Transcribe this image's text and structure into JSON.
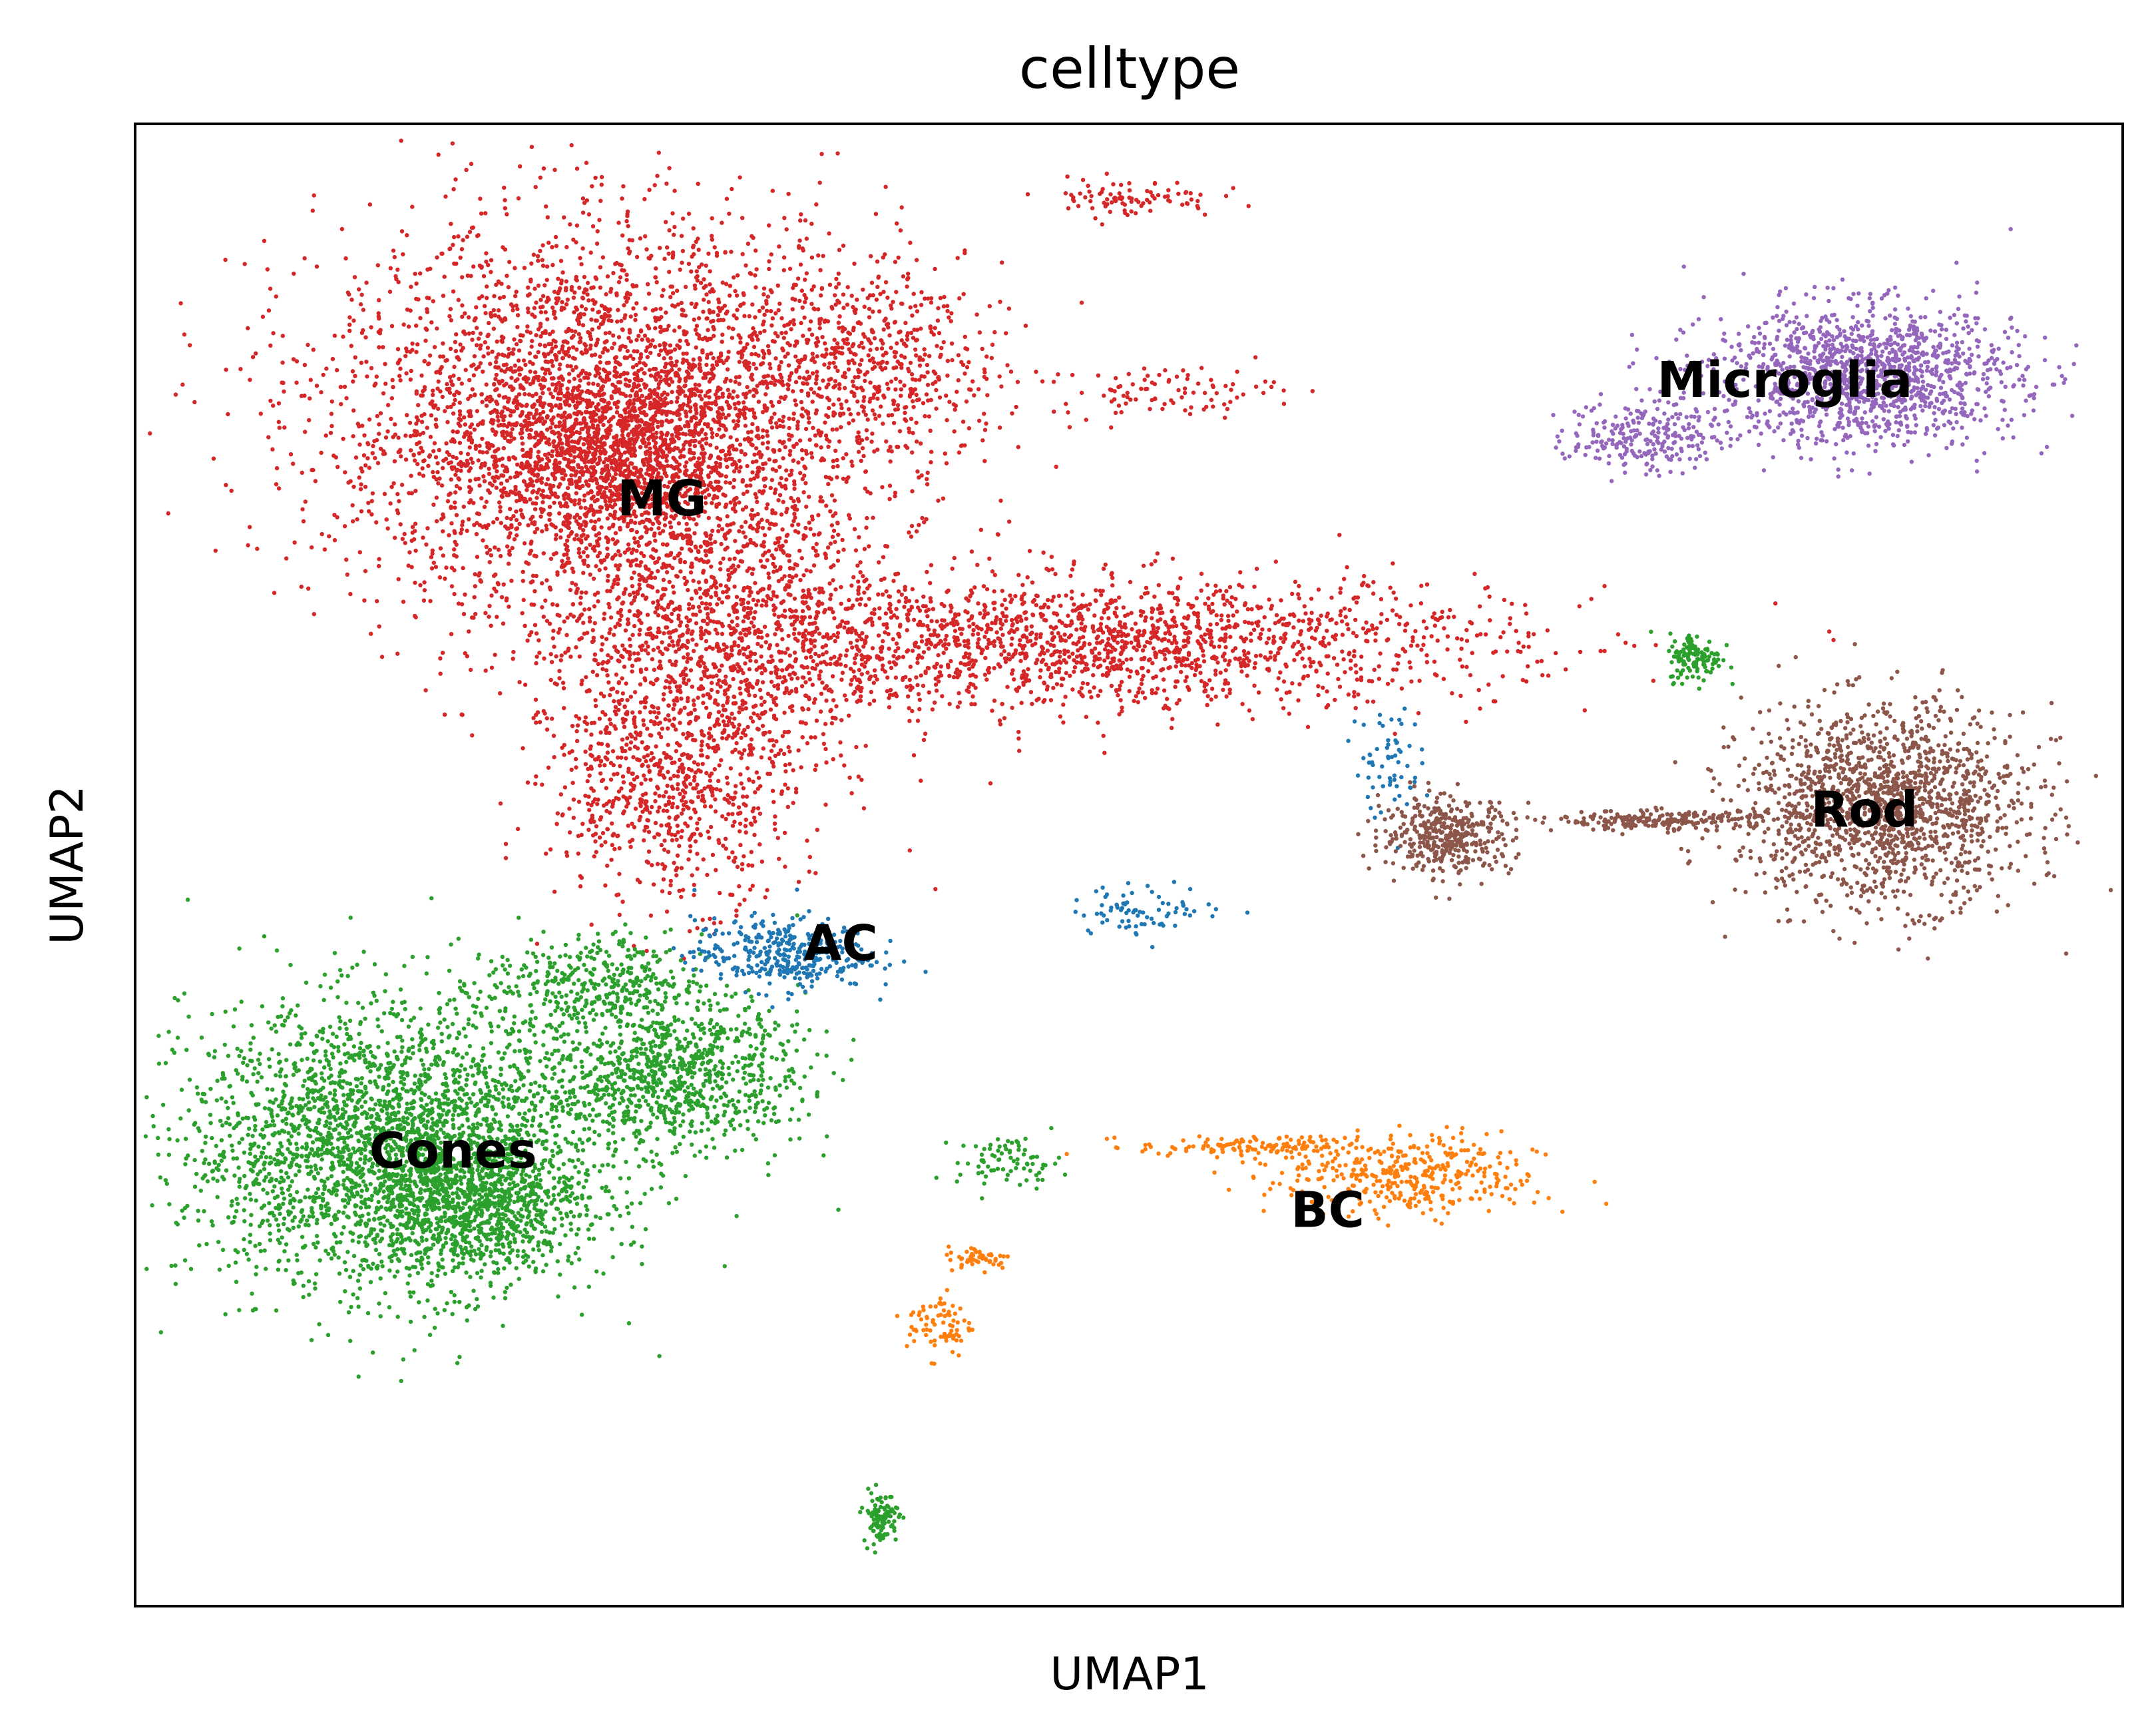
{
  "chart_data": {
    "type": "scatter",
    "title": "celltype",
    "xlabel": "UMAP1",
    "ylabel": "UMAP2",
    "xticks": false,
    "yticks": false,
    "grid": false,
    "legend": "on data",
    "xlim": [
      0,
      100
    ],
    "ylim": [
      0,
      100
    ],
    "clusters": [
      {
        "name": "MG",
        "color": "#d62728",
        "label_at": [
          26.5,
          74.5
        ],
        "point_count": 9000,
        "blobs": [
          [
            24,
            80,
            13,
            12,
            0.42
          ],
          [
            29,
            65,
            8,
            10,
            0.14
          ],
          [
            27,
            55,
            5.5,
            7,
            0.07
          ],
          [
            48,
            65,
            19,
            4,
            0.2
          ],
          [
            24,
            78,
            6,
            5,
            0.1
          ],
          [
            37,
            84,
            6,
            6,
            0.05
          ],
          [
            50,
            95,
            4,
            1.2,
            0.01
          ],
          [
            52,
            82,
            5,
            1.5,
            0.01
          ]
        ]
      },
      {
        "name": "Cones",
        "color": "#2ca02c",
        "label_at": [
          16,
          30.5
        ],
        "point_count": 5200,
        "blobs": [
          [
            13,
            31,
            9.5,
            8.5,
            0.55
          ],
          [
            17,
            27,
            5,
            4,
            0.15
          ],
          [
            27,
            36,
            6,
            4.5,
            0.18
          ],
          [
            23,
            42,
            5,
            3,
            0.07
          ],
          [
            78.5,
            64,
            1.2,
            1.5,
            0.025
          ],
          [
            37.5,
            6,
            0.8,
            1.6,
            0.02
          ],
          [
            44,
            30,
            2.4,
            1.5,
            0.015
          ]
        ]
      },
      {
        "name": "AC",
        "color": "#1f77b4",
        "label_at": [
          35.5,
          44.5
        ],
        "point_count": 520,
        "blobs": [
          [
            32.5,
            44,
            4,
            2.2,
            0.7
          ],
          [
            51,
            47,
            3.5,
            1.5,
            0.15
          ],
          [
            63,
            57,
            1.5,
            3.5,
            0.12
          ]
        ]
      },
      {
        "name": "Rod",
        "color": "#8c564b",
        "label_at": [
          87,
          53.5
        ],
        "point_count": 2200,
        "blobs": [
          [
            88,
            54,
            6.5,
            6,
            0.72
          ],
          [
            66,
            52,
            3,
            2.3,
            0.18
          ],
          [
            77,
            53,
            5,
            0.6,
            0.1
          ]
        ]
      },
      {
        "name": "Microglia",
        "color": "#9467bd",
        "label_at": [
          83,
          82.5
        ],
        "point_count": 1600,
        "blobs": [
          [
            87,
            83,
            7,
            4.2,
            0.85
          ],
          [
            76,
            79,
            3.5,
            2.2,
            0.15
          ]
        ]
      },
      {
        "name": "BC",
        "color": "#ff7f0e",
        "label_at": [
          60,
          26.5
        ],
        "point_count": 650,
        "blobs": [
          [
            64,
            29,
            6,
            2.5,
            0.6
          ],
          [
            56,
            31,
            5,
            0.6,
            0.2
          ],
          [
            40.5,
            19,
            1.5,
            2,
            0.12
          ],
          [
            42.5,
            23.5,
            1.5,
            0.7,
            0.08
          ]
        ]
      }
    ]
  }
}
